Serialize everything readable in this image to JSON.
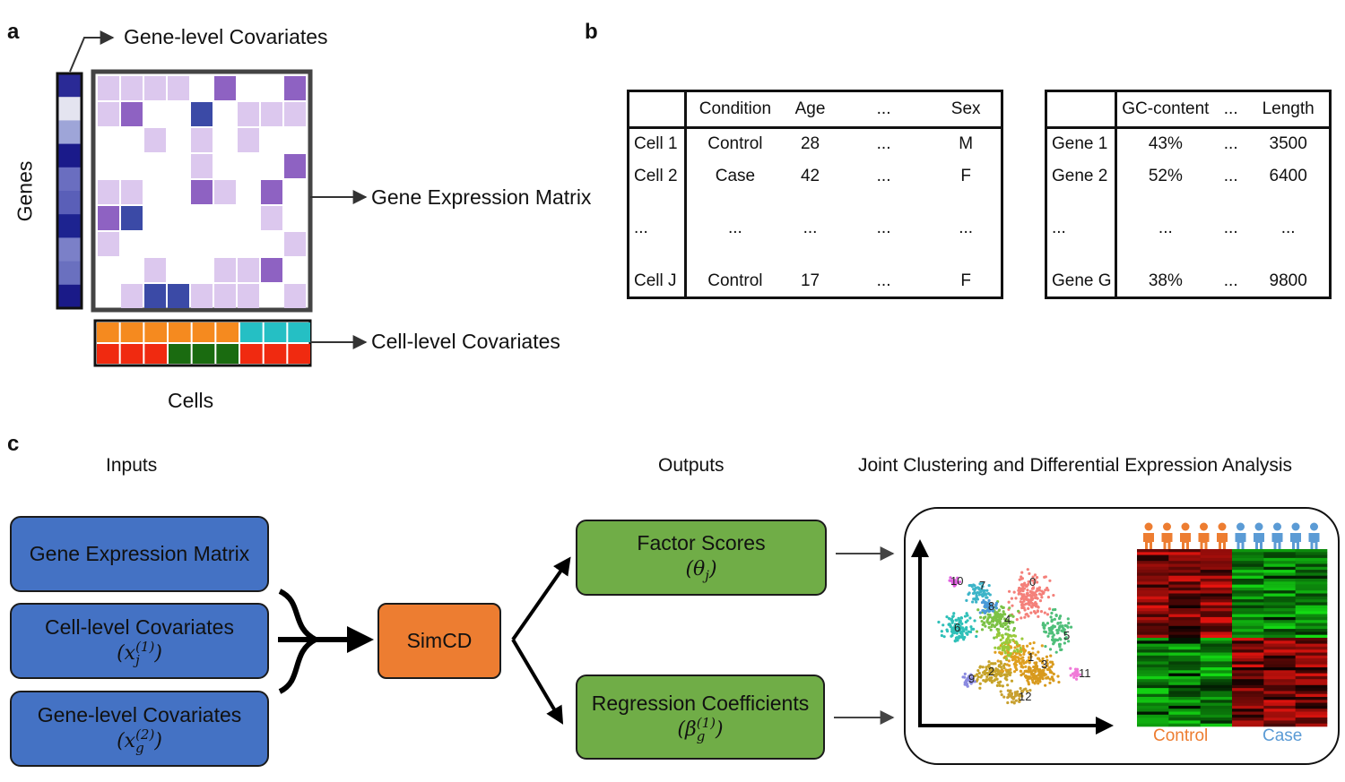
{
  "panels": {
    "a": "a",
    "b": "b",
    "c": "c"
  },
  "panel_a": {
    "gene_level_covariates": "Gene-level Covariates",
    "genes_axis": "Genes",
    "gene_expression_matrix": "Gene Expression Matrix",
    "cell_level_covariates": "Cell-level Covariates",
    "cells_axis": "Cells",
    "colors": {
      "matrix_light": "#dcc8ee",
      "matrix_mid": "#8e62c2",
      "matrix_dark": "#3b4aa6",
      "strip_dark": "#1f1f8c",
      "cov_orange": "#f58a1f",
      "cov_teal": "#25bfc4",
      "cov_red": "#f02a10",
      "cov_green": "#1a6b10"
    }
  },
  "panel_b": {
    "cell_table": {
      "headers": [
        "",
        "Condition",
        "Age",
        "...",
        "Sex"
      ],
      "rows": [
        [
          "Cell 1",
          "Control",
          "28",
          "...",
          "M"
        ],
        [
          "Cell 2",
          "Case",
          "42",
          "...",
          "F"
        ],
        [
          "...",
          "...",
          "...",
          "...",
          "..."
        ],
        [
          "Cell J",
          "Control",
          "17",
          "...",
          "F"
        ]
      ]
    },
    "gene_table": {
      "headers": [
        "",
        "GC-content",
        "...",
        "Length"
      ],
      "rows": [
        [
          "Gene 1",
          "43%",
          "...",
          "3500"
        ],
        [
          "Gene 2",
          "52%",
          "...",
          "6400"
        ],
        [
          "...",
          "...",
          "...",
          "..."
        ],
        [
          "Gene G",
          "38%",
          "...",
          "9800"
        ]
      ]
    }
  },
  "panel_c": {
    "inputs_title": "Inputs",
    "outputs_title": "Outputs",
    "analysis_title": "Joint Clustering and Differential Expression Analysis",
    "inputs": {
      "gene_expression_matrix": "Gene Expression Matrix",
      "cell_level_covariates": "Cell-level Covariates",
      "cell_level_symbol": "(x",
      "cell_level_sub": "j",
      "cell_level_sup": "(1)",
      "gene_level_covariates": "Gene-level Covariates",
      "gene_level_symbol": "(x",
      "gene_level_sub": "g",
      "gene_level_sup": "(2)"
    },
    "model": "SimCD",
    "outputs": {
      "factor_scores": "Factor Scores",
      "factor_symbol": "(θ",
      "factor_sub": "j",
      "regression_coefficients": "Regression Coefficients",
      "regression_symbol": "(β",
      "regression_sub": "g",
      "regression_sup": "(1)"
    },
    "clusters": [
      "0",
      "1",
      "2",
      "3",
      "4",
      "5",
      "6",
      "7",
      "8",
      "9",
      "10",
      "11",
      "12"
    ],
    "heatmap_groups": {
      "control": "Control",
      "case": "Case"
    },
    "colors": {
      "box_blue": "#4472c4",
      "box_green": "#70ad47",
      "box_orange": "#ed7d31",
      "control": "#ed7d31",
      "case": "#5b9bd5"
    }
  }
}
